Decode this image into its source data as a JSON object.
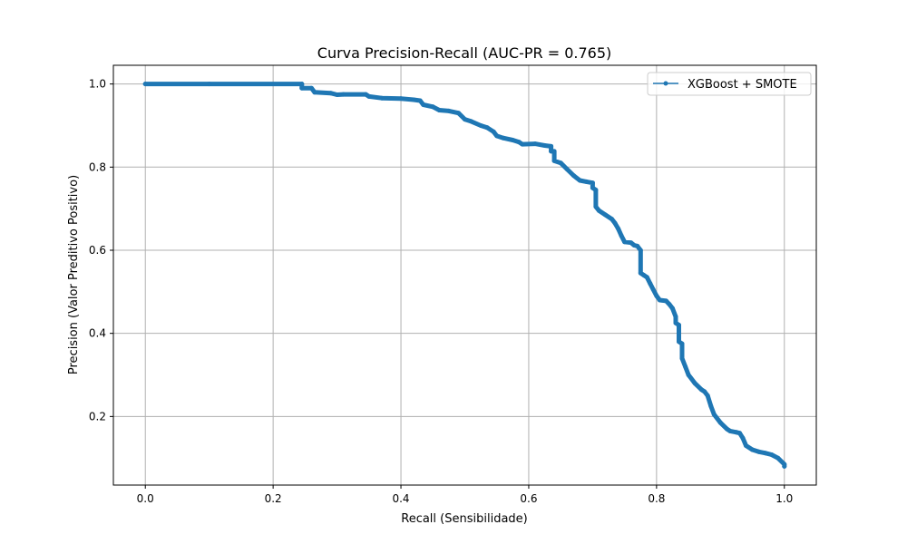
{
  "chart_data": {
    "type": "line",
    "title": "Curva Precision-Recall (AUC-PR = 0.765)",
    "xlabel": "Recall (Sensibilidade)",
    "ylabel": "Precision (Valor Preditivo Positivo)",
    "xlim": [
      -0.05,
      1.05
    ],
    "ylim": [
      0.035,
      1.045
    ],
    "xticks": [
      0.0,
      0.2,
      0.4,
      0.6,
      0.8,
      1.0
    ],
    "xtick_labels": [
      "0.0",
      "0.2",
      "0.4",
      "0.6",
      "0.8",
      "1.0"
    ],
    "yticks": [
      0.2,
      0.4,
      0.6,
      0.8,
      1.0
    ],
    "ytick_labels": [
      "0.2",
      "0.4",
      "0.6",
      "0.8",
      "1.0"
    ],
    "grid": true,
    "legend_position": "top-right",
    "color": "#1f77b4",
    "series": [
      {
        "name": "XGBoost + SMOTE",
        "marker": "circle",
        "points": [
          [
            0.0,
            1.0
          ],
          [
            0.1,
            1.0
          ],
          [
            0.245,
            1.0
          ],
          [
            0.245,
            0.99
          ],
          [
            0.26,
            0.99
          ],
          [
            0.265,
            0.98
          ],
          [
            0.29,
            0.978
          ],
          [
            0.3,
            0.974
          ],
          [
            0.31,
            0.975
          ],
          [
            0.345,
            0.975
          ],
          [
            0.35,
            0.97
          ],
          [
            0.37,
            0.966
          ],
          [
            0.4,
            0.965
          ],
          [
            0.42,
            0.962
          ],
          [
            0.43,
            0.96
          ],
          [
            0.435,
            0.95
          ],
          [
            0.45,
            0.945
          ],
          [
            0.46,
            0.937
          ],
          [
            0.475,
            0.935
          ],
          [
            0.49,
            0.93
          ],
          [
            0.5,
            0.915
          ],
          [
            0.51,
            0.91
          ],
          [
            0.525,
            0.9
          ],
          [
            0.535,
            0.895
          ],
          [
            0.545,
            0.885
          ],
          [
            0.55,
            0.875
          ],
          [
            0.56,
            0.87
          ],
          [
            0.575,
            0.865
          ],
          [
            0.585,
            0.86
          ],
          [
            0.59,
            0.855
          ],
          [
            0.61,
            0.856
          ],
          [
            0.625,
            0.852
          ],
          [
            0.635,
            0.85
          ],
          [
            0.635,
            0.838
          ],
          [
            0.64,
            0.838
          ],
          [
            0.64,
            0.815
          ],
          [
            0.65,
            0.81
          ],
          [
            0.66,
            0.795
          ],
          [
            0.67,
            0.78
          ],
          [
            0.68,
            0.768
          ],
          [
            0.69,
            0.765
          ],
          [
            0.7,
            0.762
          ],
          [
            0.7,
            0.75
          ],
          [
            0.705,
            0.745
          ],
          [
            0.705,
            0.705
          ],
          [
            0.71,
            0.695
          ],
          [
            0.72,
            0.685
          ],
          [
            0.73,
            0.675
          ],
          [
            0.735,
            0.665
          ],
          [
            0.74,
            0.652
          ],
          [
            0.745,
            0.635
          ],
          [
            0.75,
            0.62
          ],
          [
            0.76,
            0.618
          ],
          [
            0.765,
            0.612
          ],
          [
            0.77,
            0.61
          ],
          [
            0.775,
            0.6
          ],
          [
            0.775,
            0.545
          ],
          [
            0.78,
            0.54
          ],
          [
            0.785,
            0.535
          ],
          [
            0.79,
            0.52
          ],
          [
            0.795,
            0.505
          ],
          [
            0.8,
            0.49
          ],
          [
            0.805,
            0.48
          ],
          [
            0.815,
            0.478
          ],
          [
            0.82,
            0.47
          ],
          [
            0.825,
            0.46
          ],
          [
            0.83,
            0.44
          ],
          [
            0.83,
            0.425
          ],
          [
            0.835,
            0.42
          ],
          [
            0.835,
            0.38
          ],
          [
            0.84,
            0.375
          ],
          [
            0.84,
            0.34
          ],
          [
            0.845,
            0.32
          ],
          [
            0.85,
            0.3
          ],
          [
            0.86,
            0.28
          ],
          [
            0.87,
            0.265
          ],
          [
            0.875,
            0.26
          ],
          [
            0.88,
            0.25
          ],
          [
            0.885,
            0.225
          ],
          [
            0.89,
            0.205
          ],
          [
            0.9,
            0.185
          ],
          [
            0.91,
            0.17
          ],
          [
            0.915,
            0.165
          ],
          [
            0.925,
            0.162
          ],
          [
            0.93,
            0.16
          ],
          [
            0.935,
            0.148
          ],
          [
            0.94,
            0.13
          ],
          [
            0.95,
            0.12
          ],
          [
            0.96,
            0.115
          ],
          [
            0.97,
            0.112
          ],
          [
            0.98,
            0.108
          ],
          [
            0.99,
            0.1
          ],
          [
            1.0,
            0.085
          ],
          [
            1.0,
            0.08
          ]
        ]
      }
    ]
  }
}
